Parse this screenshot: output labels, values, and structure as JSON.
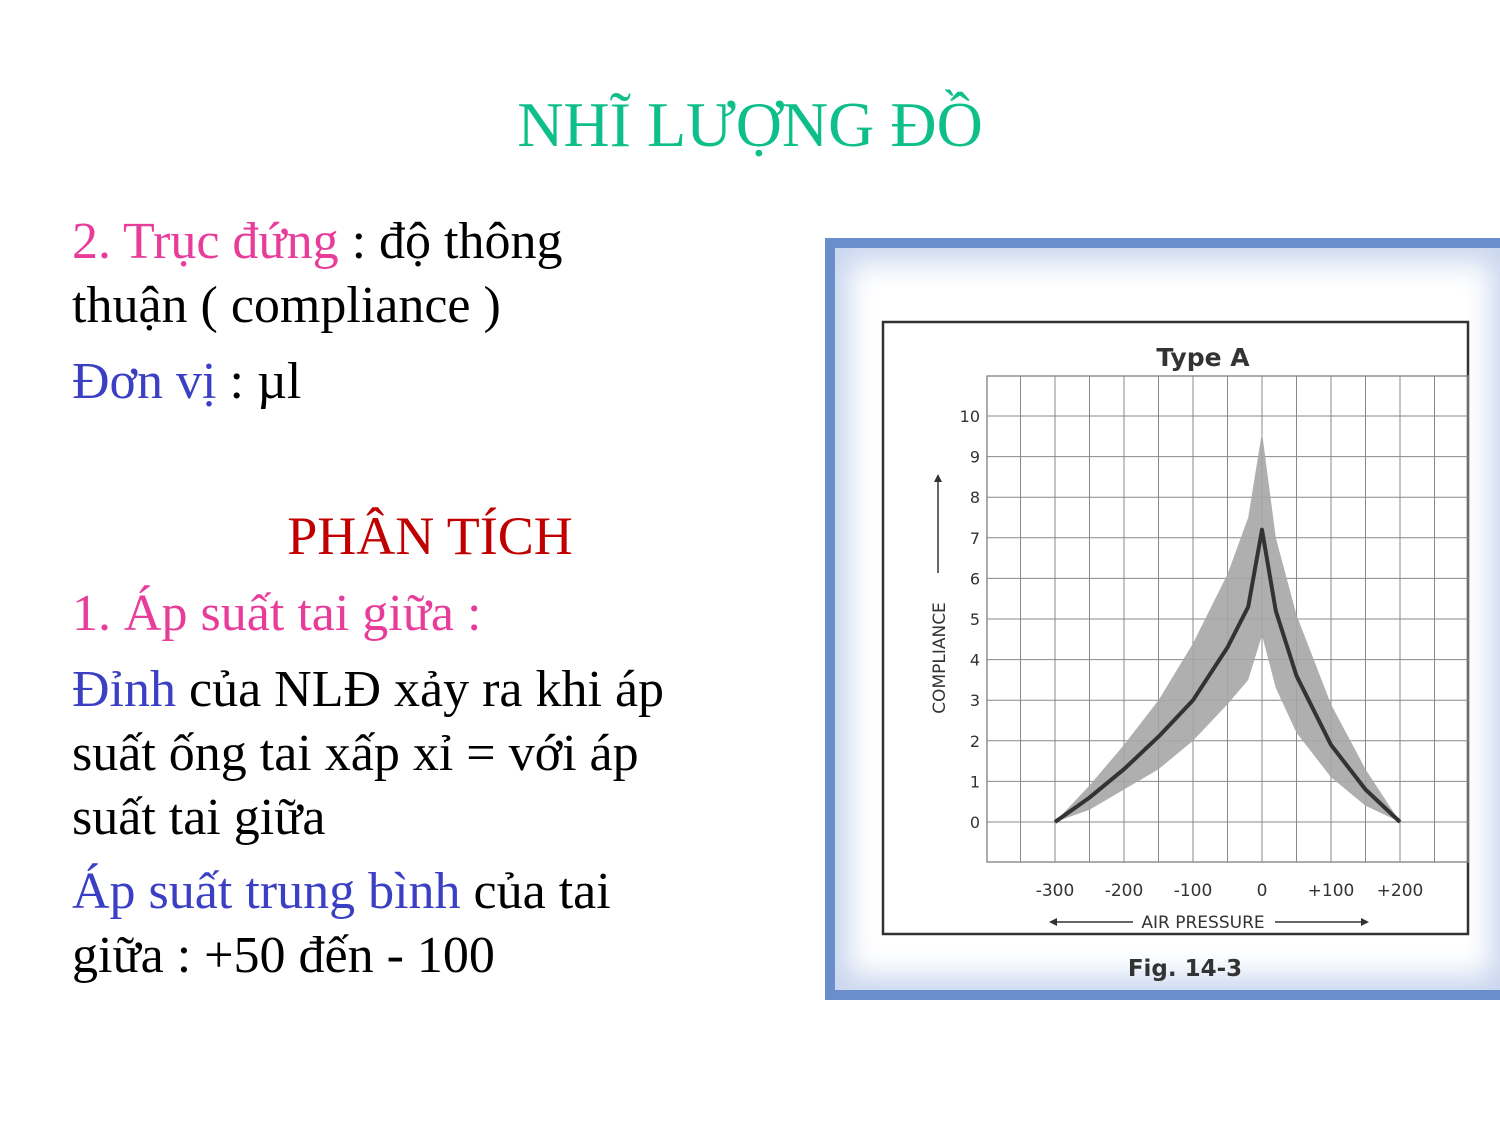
{
  "slide": {
    "title": "NHĨ LƯỢNG ĐỒ",
    "line1_part1": "2. Trục đứng",
    "line1_part2": " : độ thông",
    "line2": "thuận ( compliance )",
    "line3_part1": "Đơn vị",
    "line3_part2": " : µl",
    "section_title": "PHÂN TÍCH",
    "point1": "1. Áp suất tai giữa :",
    "para1_part1": "Đỉnh",
    "para1_part2": " của NLĐ xảy ra khi áp",
    "para1_line2": "suất ống tai xấp xỉ = với áp",
    "para1_line3": "suất tai giữa",
    "para2_part1": "Áp suất trung bình",
    "para2_part2": " của tai",
    "para2_line2": "giữa : +50 đến - 100"
  },
  "chart_data": {
    "type": "area",
    "title": "Type A",
    "xlabel": "AIR PRESSURE",
    "ylabel": "COMPLIANCE",
    "caption": "Fig. 14-3",
    "x_ticks": [
      "-300",
      "-200",
      "-100",
      "0",
      "+100",
      "+200"
    ],
    "y_ticks": [
      "0",
      "1",
      "2",
      "3",
      "4",
      "5",
      "6",
      "7",
      "8",
      "9",
      "10"
    ],
    "xlim": [
      -300,
      200
    ],
    "ylim": [
      0,
      10
    ],
    "grid": true,
    "colors": {
      "band": "#a6a6a6",
      "line": "#333333",
      "grid": "#888888"
    },
    "series": [
      {
        "role": "mean",
        "x": [
          -300,
          -250,
          -200,
          -150,
          -100,
          -50,
          -20,
          0,
          20,
          50,
          100,
          150,
          200
        ],
        "y": [
          0,
          0.6,
          1.3,
          2.1,
          3.0,
          4.3,
          5.3,
          7.2,
          5.2,
          3.6,
          1.9,
          0.8,
          0
        ]
      },
      {
        "role": "upper",
        "x": [
          -300,
          -250,
          -200,
          -150,
          -100,
          -50,
          -20,
          0,
          20,
          50,
          100,
          150,
          200
        ],
        "y": [
          0,
          0.9,
          1.9,
          3.0,
          4.4,
          6.1,
          7.5,
          9.6,
          7.0,
          5.1,
          2.9,
          1.3,
          0
        ]
      },
      {
        "role": "lower",
        "x": [
          -300,
          -250,
          -200,
          -150,
          -100,
          -50,
          -20,
          0,
          20,
          50,
          100,
          150,
          200
        ],
        "y": [
          0,
          0.3,
          0.8,
          1.3,
          2.0,
          2.9,
          3.5,
          4.6,
          3.3,
          2.2,
          1.1,
          0.4,
          0
        ]
      }
    ]
  }
}
